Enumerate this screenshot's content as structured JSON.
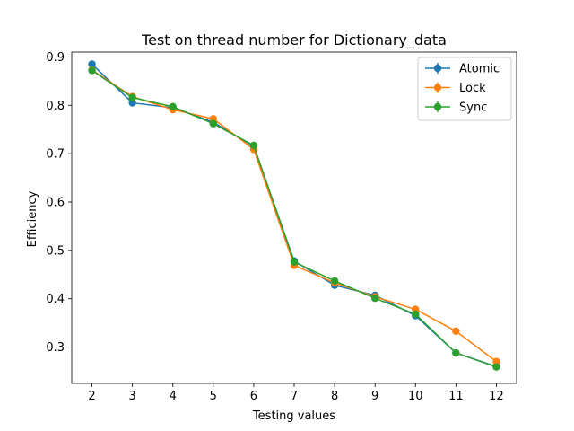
{
  "chart_data": {
    "type": "line",
    "title": "Test on thread number for Dictionary_data",
    "xlabel": "Testing values",
    "ylabel": "Efficiency",
    "x": [
      2,
      3,
      4,
      5,
      6,
      7,
      8,
      9,
      10,
      11,
      12
    ],
    "xlim": [
      1.5,
      12.5
    ],
    "ylim": [
      0.225,
      0.91
    ],
    "yticks": [
      0.3,
      0.4,
      0.5,
      0.6,
      0.7,
      0.8,
      0.9
    ],
    "ytick_labels": [
      "0.3",
      "0.4",
      "0.5",
      "0.6",
      "0.7",
      "0.8",
      "0.9"
    ],
    "xtick_labels": [
      "2",
      "3",
      "4",
      "5",
      "6",
      "7",
      "8",
      "9",
      "10",
      "11",
      "12"
    ],
    "grid": false,
    "legend_position": "top-right",
    "series": [
      {
        "name": "Atomic",
        "color": "#1f77b4",
        "values": [
          0.885,
          0.805,
          0.795,
          0.765,
          0.715,
          0.478,
          0.428,
          0.407,
          0.365,
          0.288,
          0.26
        ]
      },
      {
        "name": "Lock",
        "color": "#ff7f0e",
        "values": [
          0.873,
          0.818,
          0.791,
          0.772,
          0.709,
          0.469,
          0.433,
          0.404,
          0.378,
          0.333,
          0.27
        ]
      },
      {
        "name": "Sync",
        "color": "#2ca02c",
        "values": [
          0.872,
          0.816,
          0.797,
          0.762,
          0.717,
          0.476,
          0.437,
          0.401,
          0.368,
          0.288,
          0.259
        ]
      }
    ]
  }
}
